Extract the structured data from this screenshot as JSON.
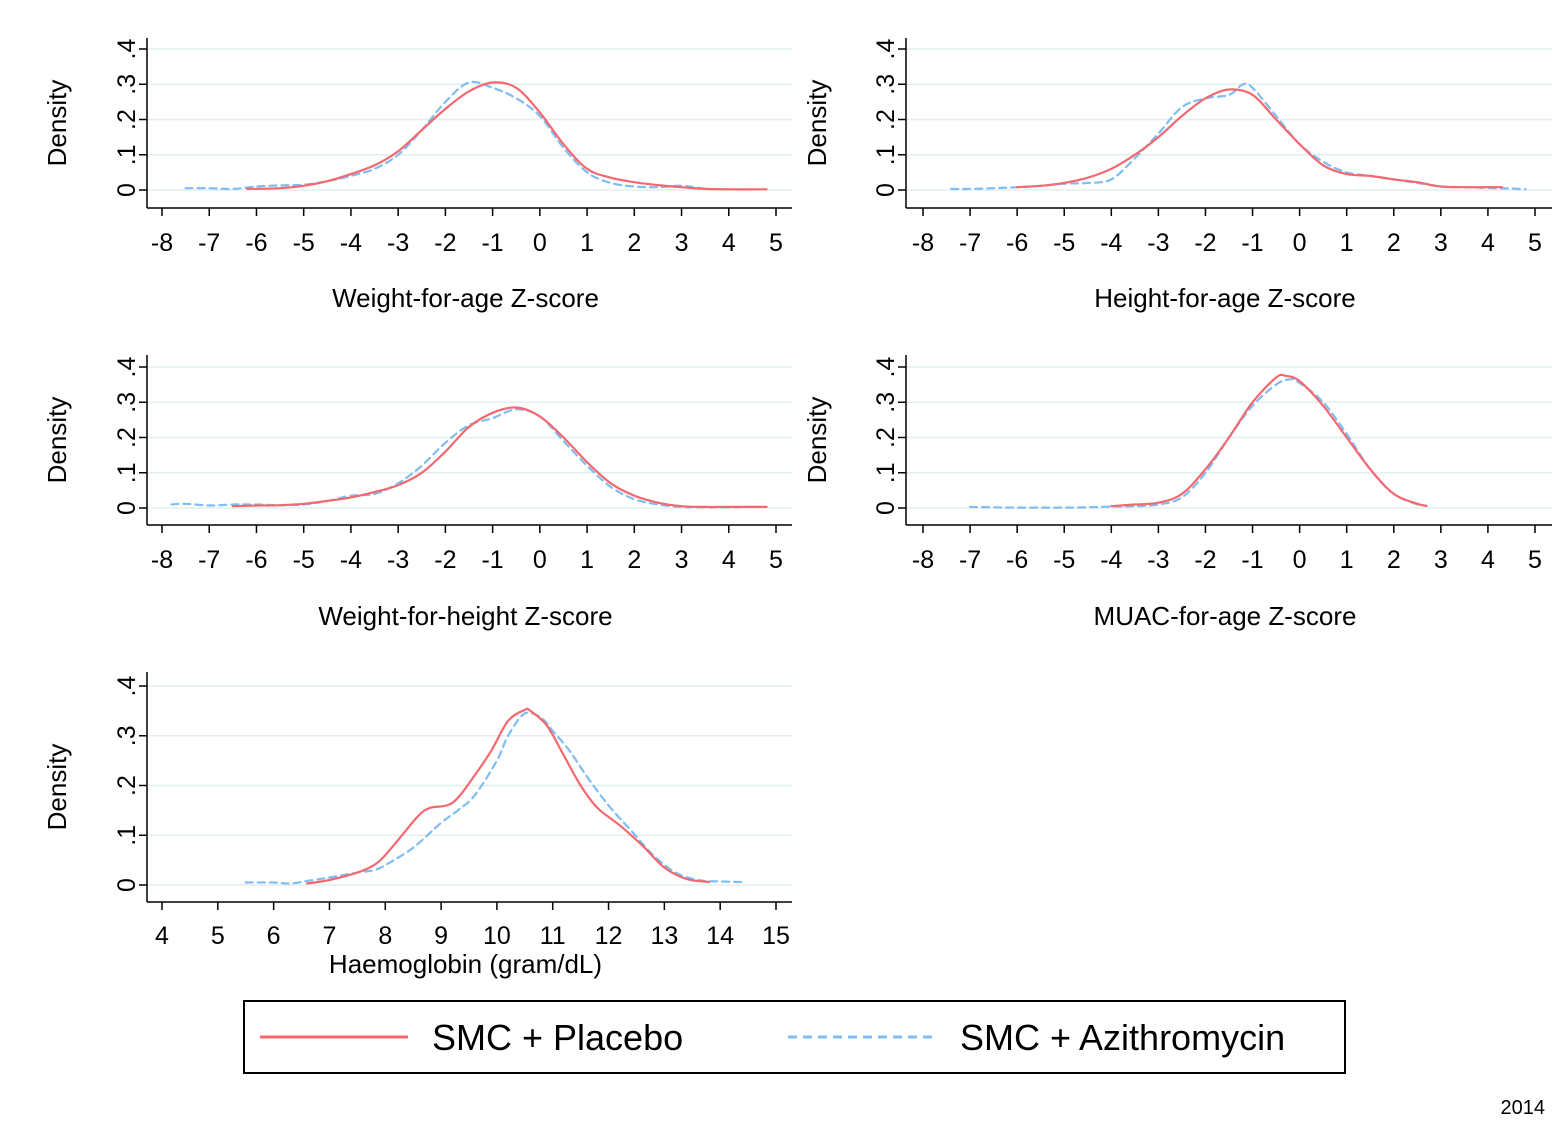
{
  "figure": {
    "year_note": "2014"
  },
  "colors": {
    "placebo": "#f4686f",
    "azithromycin": "#7fbdf2",
    "grid": "#e3eeee",
    "axis": "#000000"
  },
  "legend": {
    "placement": "bottom-center",
    "items": [
      {
        "label": "SMC + Placebo",
        "color": "#f4686f",
        "style": "solid"
      },
      {
        "label": "SMC + Azithromycin",
        "color": "#7fbdf2",
        "style": "dashed"
      }
    ]
  },
  "chart_data": [
    {
      "type": "line",
      "title": "",
      "xlabel": "Weight-for-age Z-score",
      "ylabel": "Density",
      "xlim": [
        -8,
        5
      ],
      "ylim": [
        0,
        0.4
      ],
      "xticks": [
        "-8",
        "-7",
        "-6",
        "-5",
        "-4",
        "-3",
        "-2",
        "-1",
        "0",
        "1",
        "2",
        "3",
        "4",
        "5"
      ],
      "yticks": [
        "0",
        ".1",
        ".2",
        ".3",
        ".4"
      ],
      "grid": true,
      "series": [
        {
          "name": "SMC + Placebo",
          "style": "solid",
          "color": "#f4686f",
          "x": [
            -6.2,
            -5.5,
            -5,
            -4.5,
            -4,
            -3.5,
            -3,
            -2.5,
            -2,
            -1.5,
            -1,
            -0.5,
            0,
            0.5,
            1,
            1.5,
            2,
            2.5,
            3,
            3.5,
            4,
            4.8
          ],
          "y": [
            0.003,
            0.005,
            0.012,
            0.025,
            0.045,
            0.07,
            0.11,
            0.17,
            0.23,
            0.28,
            0.305,
            0.29,
            0.22,
            0.13,
            0.06,
            0.035,
            0.022,
            0.014,
            0.008,
            0.003,
            0.002,
            0.002
          ]
        },
        {
          "name": "SMC + Azithromycin",
          "style": "dashed",
          "color": "#7fbdf2",
          "x": [
            -7.5,
            -7,
            -6.5,
            -6,
            -5.5,
            -5,
            -4.5,
            -4,
            -3.5,
            -3,
            -2.5,
            -2,
            -1.5,
            -1,
            -0.5,
            0,
            0.5,
            1,
            1.5,
            2,
            2.5,
            3,
            3.5
          ],
          "y": [
            0.005,
            0.005,
            0.003,
            0.01,
            0.013,
            0.015,
            0.025,
            0.04,
            0.06,
            0.1,
            0.17,
            0.25,
            0.305,
            0.29,
            0.26,
            0.21,
            0.12,
            0.05,
            0.02,
            0.01,
            0.008,
            0.012,
            0.003
          ]
        }
      ]
    },
    {
      "type": "line",
      "title": "",
      "xlabel": "Height-for-age Z-score",
      "ylabel": "Density",
      "xlim": [
        -8,
        5
      ],
      "ylim": [
        0,
        0.4
      ],
      "xticks": [
        "-8",
        "-7",
        "-6",
        "-5",
        "-4",
        "-3",
        "-2",
        "-1",
        "0",
        "1",
        "2",
        "3",
        "4",
        "5"
      ],
      "yticks": [
        "0",
        ".1",
        ".2",
        ".3",
        ".4"
      ],
      "grid": true,
      "series": [
        {
          "name": "SMC + Placebo",
          "style": "solid",
          "color": "#f4686f",
          "x": [
            -6,
            -5.5,
            -5,
            -4.5,
            -4,
            -3.5,
            -3,
            -2.5,
            -2,
            -1.5,
            -1,
            -0.5,
            0,
            0.5,
            1,
            1.5,
            2,
            2.5,
            3,
            3.5,
            4,
            4.3
          ],
          "y": [
            0.008,
            0.012,
            0.02,
            0.035,
            0.06,
            0.1,
            0.15,
            0.21,
            0.26,
            0.285,
            0.27,
            0.2,
            0.13,
            0.07,
            0.045,
            0.04,
            0.03,
            0.022,
            0.01,
            0.008,
            0.008,
            0.008
          ]
        },
        {
          "name": "SMC + Azithromycin",
          "style": "dashed",
          "color": "#7fbdf2",
          "x": [
            -7.4,
            -7,
            -6.5,
            -6,
            -5.5,
            -5,
            -4.5,
            -4,
            -3.5,
            -3,
            -2.5,
            -2,
            -1.5,
            -1.2,
            -1,
            -0.5,
            0,
            0.5,
            1,
            1.5,
            2,
            2.5,
            3,
            3.5,
            4,
            4.5,
            4.8
          ],
          "y": [
            0.003,
            0.003,
            0.005,
            0.008,
            0.012,
            0.018,
            0.02,
            0.03,
            0.09,
            0.16,
            0.235,
            0.26,
            0.27,
            0.3,
            0.29,
            0.21,
            0.13,
            0.08,
            0.05,
            0.04,
            0.03,
            0.02,
            0.01,
            0.008,
            0.006,
            0.004,
            0.002
          ]
        }
      ]
    },
    {
      "type": "line",
      "title": "",
      "xlabel": "Weight-for-height Z-score",
      "ylabel": "Density",
      "xlim": [
        -8,
        5
      ],
      "ylim": [
        0,
        0.4
      ],
      "xticks": [
        "-8",
        "-7",
        "-6",
        "-5",
        "-4",
        "-3",
        "-2",
        "-1",
        "0",
        "1",
        "2",
        "3",
        "4",
        "5"
      ],
      "yticks": [
        "0",
        ".1",
        ".2",
        ".3",
        ".4"
      ],
      "grid": true,
      "series": [
        {
          "name": "SMC + Placebo",
          "style": "solid",
          "color": "#f4686f",
          "x": [
            -6.5,
            -6,
            -5.5,
            -5,
            -4.5,
            -4,
            -3.5,
            -3,
            -2.5,
            -2,
            -1.5,
            -1,
            -0.5,
            0,
            0.5,
            1,
            1.5,
            2,
            2.5,
            3,
            3.5,
            4,
            4.8
          ],
          "y": [
            0.005,
            0.007,
            0.008,
            0.012,
            0.02,
            0.03,
            0.045,
            0.065,
            0.1,
            0.16,
            0.23,
            0.27,
            0.285,
            0.26,
            0.2,
            0.13,
            0.07,
            0.035,
            0.015,
            0.005,
            0.003,
            0.003,
            0.003
          ]
        },
        {
          "name": "SMC + Azithromycin",
          "style": "dashed",
          "color": "#7fbdf2",
          "x": [
            -7.8,
            -7.5,
            -7,
            -6.5,
            -6,
            -5.5,
            -5,
            -4.5,
            -4,
            -3.5,
            -3,
            -2.5,
            -2,
            -1.5,
            -1,
            -0.5,
            0,
            0.5,
            1,
            1.5,
            2,
            2.5,
            3,
            3.5,
            4,
            4.5
          ],
          "y": [
            0.01,
            0.012,
            0.007,
            0.01,
            0.01,
            0.008,
            0.01,
            0.02,
            0.035,
            0.04,
            0.07,
            0.12,
            0.185,
            0.235,
            0.255,
            0.28,
            0.26,
            0.19,
            0.12,
            0.06,
            0.025,
            0.01,
            0.003,
            0.002,
            0.002,
            0.003
          ]
        }
      ]
    },
    {
      "type": "line",
      "title": "",
      "xlabel": "MUAC-for-age Z-score",
      "ylabel": "Density",
      "xlim": [
        -8,
        5
      ],
      "ylim": [
        0,
        0.4
      ],
      "xticks": [
        "-8",
        "-7",
        "-6",
        "-5",
        "-4",
        "-3",
        "-2",
        "-1",
        "0",
        "1",
        "2",
        "3",
        "4",
        "5"
      ],
      "yticks": [
        "0",
        ".1",
        ".2",
        ".3",
        ".4"
      ],
      "grid": true,
      "series": [
        {
          "name": "SMC + Placebo",
          "style": "solid",
          "color": "#f4686f",
          "x": [
            -4,
            -3.5,
            -3,
            -2.5,
            -2,
            -1.5,
            -1,
            -0.5,
            -0.3,
            0,
            0.5,
            1,
            1.5,
            2,
            2.5,
            2.7
          ],
          "y": [
            0.005,
            0.01,
            0.015,
            0.04,
            0.11,
            0.2,
            0.3,
            0.37,
            0.375,
            0.36,
            0.29,
            0.2,
            0.11,
            0.04,
            0.012,
            0.006
          ]
        },
        {
          "name": "SMC + Azithromycin",
          "style": "dashed",
          "color": "#7fbdf2",
          "x": [
            -7,
            -6.5,
            -6,
            -5.5,
            -5,
            -4.5,
            -4,
            -3.5,
            -3,
            -2.5,
            -2,
            -1.5,
            -1,
            -0.5,
            -0.2,
            0,
            0.5,
            1,
            1.5,
            2,
            2.5
          ],
          "y": [
            0.003,
            0.002,
            0.001,
            0.001,
            0.001,
            0.002,
            0.004,
            0.005,
            0.01,
            0.03,
            0.1,
            0.2,
            0.29,
            0.35,
            0.365,
            0.355,
            0.3,
            0.21,
            0.11,
            0.04,
            0.01
          ]
        }
      ]
    },
    {
      "type": "line",
      "title": "",
      "xlabel": "Haemoglobin (gram/dL)",
      "ylabel": "Density",
      "xlim": [
        4,
        15
      ],
      "ylim": [
        0,
        0.4
      ],
      "xticks": [
        "4",
        "5",
        "6",
        "7",
        "8",
        "9",
        "10",
        "11",
        "12",
        "13",
        "14",
        "15"
      ],
      "yticks": [
        "0",
        ".1",
        ".2",
        ".3",
        ".4"
      ],
      "grid": true,
      "series": [
        {
          "name": "SMC + Placebo",
          "style": "solid",
          "color": "#f4686f",
          "x": [
            6.6,
            7,
            7.5,
            7.8,
            8,
            8.3,
            8.6,
            8.8,
            9.1,
            9.3,
            9.6,
            9.9,
            10.2,
            10.5,
            10.6,
            10.9,
            11.2,
            11.5,
            11.8,
            12.2,
            12.6,
            13,
            13.4,
            13.8
          ],
          "y": [
            0.003,
            0.01,
            0.025,
            0.04,
            0.06,
            0.1,
            0.14,
            0.155,
            0.16,
            0.175,
            0.22,
            0.27,
            0.33,
            0.352,
            0.35,
            0.32,
            0.26,
            0.2,
            0.155,
            0.12,
            0.08,
            0.035,
            0.012,
            0.006
          ]
        },
        {
          "name": "SMC + Azithromycin",
          "style": "dashed",
          "color": "#7fbdf2",
          "x": [
            5.5,
            6,
            6.3,
            6.6,
            7,
            7.5,
            7.8,
            8,
            8.5,
            9,
            9.3,
            9.6,
            10,
            10.2,
            10.5,
            10.8,
            11,
            11.3,
            11.6,
            12,
            12.4,
            12.8,
            13.2,
            13.6,
            14,
            14.4
          ],
          "y": [
            0.005,
            0.005,
            0.003,
            0.008,
            0.015,
            0.025,
            0.03,
            0.04,
            0.075,
            0.125,
            0.15,
            0.18,
            0.25,
            0.3,
            0.345,
            0.335,
            0.31,
            0.27,
            0.22,
            0.16,
            0.11,
            0.06,
            0.025,
            0.01,
            0.007,
            0.006
          ]
        }
      ]
    }
  ]
}
